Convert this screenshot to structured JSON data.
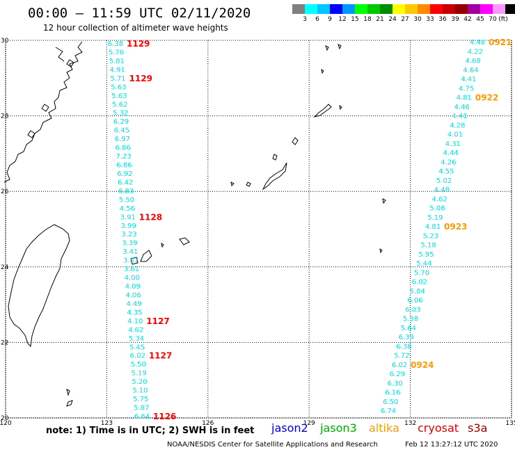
{
  "title": "00:00 – 11:59 UTC 02/11/2020",
  "subtitle": "12 hour collection of altimeter wave heights",
  "scale": {
    "unit": "(ft)",
    "colors": [
      "#808080",
      "#00ffff",
      "#00c8ff",
      "#0000ff",
      "#0096ff",
      "#00ff00",
      "#00c800",
      "#008c00",
      "#ffff00",
      "#ffc800",
      "#ff8c00",
      "#ff0000",
      "#c80000",
      "#960000",
      "#a000a0",
      "#ff00ff",
      "#ff96ff",
      "#000000"
    ],
    "labels": [
      "3",
      "6",
      "9",
      "12",
      "15",
      "18",
      "21",
      "24",
      "27",
      "30",
      "33",
      "36",
      "39",
      "42",
      "45",
      "70"
    ]
  },
  "axes": {
    "lon_labels": [
      "120",
      "123",
      "126",
      "129",
      "132",
      "135"
    ],
    "lat_labels": [
      "30",
      "28",
      "26",
      "24",
      "22",
      "20"
    ],
    "lon_range": [
      120,
      135
    ],
    "lat_range": [
      20,
      30
    ]
  },
  "tracks": [
    {
      "color": "#00e0e0",
      "values": [
        "6.38",
        "5.76",
        "5.81",
        "4.91",
        "5.71",
        "5.63",
        "5.63",
        "5.62",
        "5.32",
        "6.29",
        "6.45",
        "6.97",
        "6.86",
        "7.23",
        "6.86",
        "6.92",
        "6.42",
        "6.83",
        "5.50",
        "4.56",
        "3.91",
        "3.99",
        "3.23",
        "3.39",
        "3.41",
        "3.57",
        "3.61",
        "4.00",
        "4.09",
        "4.06",
        "4.49",
        "4.35",
        "4.10",
        "4.62",
        "5.34",
        "5.45",
        "6.02",
        "5.50",
        "5.19",
        "5.20",
        "5.10",
        "5.75",
        "5.87",
        "6.64"
      ],
      "time_labels": [
        {
          "text": "1129",
          "index": 0
        },
        {
          "text": "1129",
          "index": 4
        },
        {
          "text": "1128",
          "index": 20
        },
        {
          "text": "1127",
          "index": 32
        },
        {
          "text": "1127",
          "index": 36
        },
        {
          "text": "1126",
          "index": 43
        }
      ],
      "time_color": "#ff0000"
    },
    {
      "color": "#00e0e0",
      "values": [
        "4.48",
        "4.22",
        "4.68",
        "4.64",
        "4.41",
        "4.75",
        "4.81",
        "4.46",
        "4.41",
        "4.28",
        "4.01",
        "4.31",
        "4.44",
        "4.26",
        "4.55",
        "5.02",
        "4.48",
        "4.62",
        "5.08",
        "5.19",
        "4.81",
        "5.23",
        "5.18",
        "5.95",
        "5.44",
        "5.70",
        "6.02",
        "5.84",
        "6.06",
        "6.03",
        "5.38",
        "5.64",
        "6.39",
        "6.38",
        "5.72",
        "6.02",
        "6.29",
        "6.30",
        "6.16",
        "6.50",
        "6.74"
      ],
      "time_labels": [
        {
          "text": "0921",
          "index": 0
        },
        {
          "text": "0922",
          "index": 6
        },
        {
          "text": "0923",
          "index": 20
        },
        {
          "text": "0924",
          "index": 35
        }
      ],
      "time_color": "#ff9900"
    }
  ],
  "note": "note: 1) Time is in UTC; 2) SWH is in feet",
  "satellites": [
    {
      "name": "jason2",
      "color": "#0000dd"
    },
    {
      "name": "jason3",
      "color": "#00aa00"
    },
    {
      "name": "altika",
      "color": "#ff9900"
    },
    {
      "name": "cryosat",
      "color": "#dd0000"
    },
    {
      "name": "s3a",
      "color": "#990000"
    }
  ],
  "footer": "NOAA/NESDIS Center for Satellite Applications and Research",
  "timestamp": "Feb 12 13:27:12 UTC 2020"
}
